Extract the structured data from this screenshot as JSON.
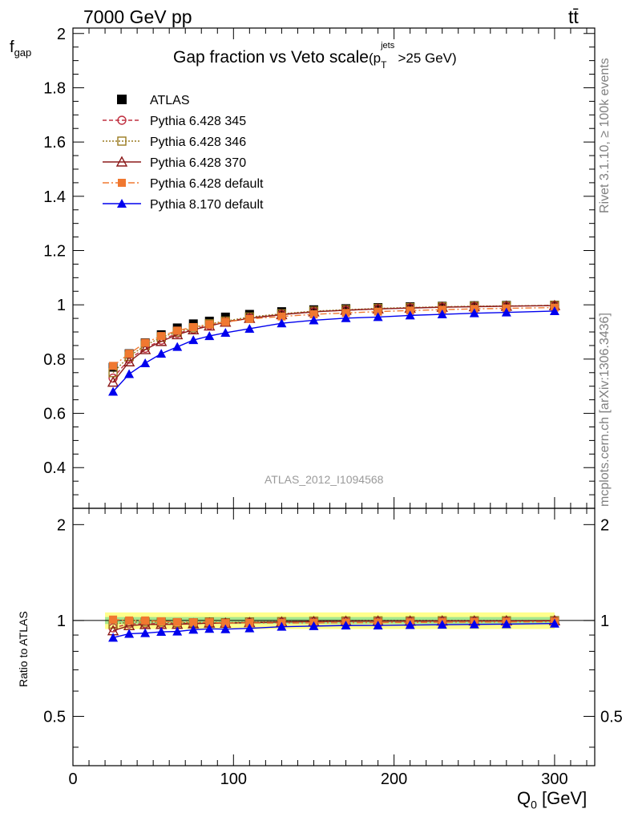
{
  "header": {
    "left": "7000 GeV pp",
    "right": "tt̄",
    "side_top": "Rivet 3.1.10, ≥ 100k events",
    "side_bottom": "mcplots.cern.ch [arXiv:1306.3436]",
    "watermark": "ATLAS_2012_I1094568"
  },
  "chart_data": {
    "type": "line",
    "title": "Gap fraction vs Veto scale",
    "title_suffix": {
      "base": "(p",
      "sup": "jets",
      "sub": "T",
      "tail": ">25 GeV)"
    },
    "ylabel": {
      "base": "f",
      "sub": "gap"
    },
    "xlabel": {
      "base": "Q",
      "sub": "0",
      "tail": " [GeV]"
    },
    "ratio_ylabel": "Ratio to ATLAS",
    "xlim": [
      0,
      325
    ],
    "ylim": [
      0.25,
      2.02
    ],
    "ratio_ylim": [
      0.35,
      2.25
    ],
    "x_ticks": [
      "0",
      "100",
      "200",
      "300"
    ],
    "y_ticks": [
      "0.4",
      "0.6",
      "0.8",
      "1",
      "1.2",
      "1.4",
      "1.6",
      "1.8",
      "2"
    ],
    "ratio_ticks": [
      "0.5",
      "1",
      "2"
    ],
    "legend_position": "top-left",
    "x": [
      25,
      35,
      45,
      55,
      65,
      75,
      85,
      95,
      110,
      130,
      150,
      170,
      190,
      210,
      230,
      250,
      270,
      300
    ],
    "series": [
      {
        "name": "ATLAS",
        "color": "#000000",
        "marker": "square-filled",
        "values": [
          0.77,
          0.82,
          0.86,
          0.89,
          0.915,
          0.93,
          0.94,
          0.955,
          0.965,
          0.975,
          0.982,
          0.986,
          0.99,
          0.993,
          0.995,
          0.997,
          0.998,
          0.999
        ]
      },
      {
        "name": "Pythia 6.428 345",
        "color": "#c03040",
        "marker": "circle-open",
        "values": [
          0.73,
          0.8,
          0.84,
          0.87,
          0.895,
          0.91,
          0.925,
          0.938,
          0.952,
          0.965,
          0.975,
          0.98,
          0.985,
          0.989,
          0.992,
          0.994,
          0.995,
          0.998
        ]
      },
      {
        "name": "Pythia 6.428 346",
        "color": "#9a7a20",
        "marker": "square-open",
        "values": [
          0.75,
          0.81,
          0.85,
          0.88,
          0.9,
          0.915,
          0.93,
          0.94,
          0.955,
          0.967,
          0.977,
          0.982,
          0.987,
          0.99,
          0.993,
          0.995,
          0.996,
          0.998
        ]
      },
      {
        "name": "Pythia 6.428 370",
        "color": "#8b1a1a",
        "marker": "triangle-open",
        "values": [
          0.715,
          0.79,
          0.835,
          0.865,
          0.89,
          0.908,
          0.922,
          0.936,
          0.95,
          0.964,
          0.974,
          0.98,
          0.985,
          0.988,
          0.991,
          0.993,
          0.995,
          0.997
        ]
      },
      {
        "name": "Pythia 6.428 default",
        "color": "#f07830",
        "marker": "square-filled",
        "values": [
          0.775,
          0.82,
          0.86,
          0.885,
          0.905,
          0.918,
          0.928,
          0.937,
          0.948,
          0.957,
          0.965,
          0.97,
          0.975,
          0.979,
          0.982,
          0.985,
          0.987,
          0.99
        ]
      },
      {
        "name": "Pythia 8.170 default",
        "color": "#0000ee",
        "marker": "triangle-filled",
        "values": [
          0.68,
          0.745,
          0.785,
          0.82,
          0.845,
          0.87,
          0.885,
          0.897,
          0.912,
          0.932,
          0.943,
          0.951,
          0.955,
          0.961,
          0.965,
          0.969,
          0.972,
          0.977
        ]
      }
    ],
    "ratio_band": {
      "color": "#ffff66",
      "inner_color": "#8fe08f"
    }
  }
}
